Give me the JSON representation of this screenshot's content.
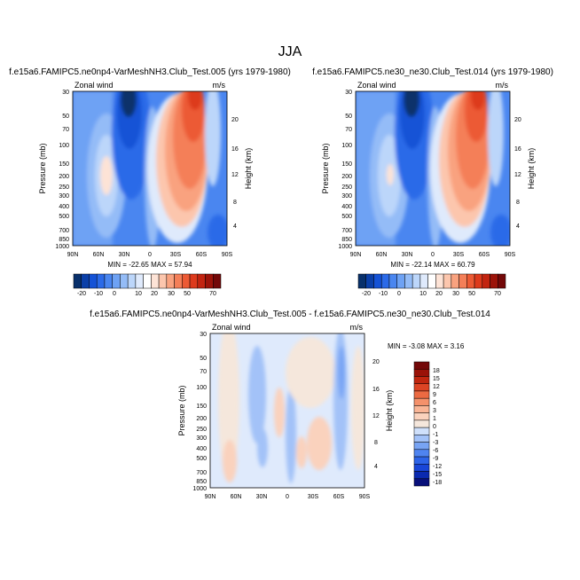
{
  "figure": {
    "title": "JJA"
  },
  "colors": {
    "cbar_top": [
      "#08306b",
      "#0a3fa8",
      "#1452d6",
      "#2b6ae8",
      "#4a86f0",
      "#6ea2f4",
      "#94bcf7",
      "#bcd6fa",
      "#dfeafc",
      "#ffffff",
      "#fde3d6",
      "#fcc6ad",
      "#f9a27f",
      "#f47f58",
      "#ec5a34",
      "#dd3a1c",
      "#c22410",
      "#9c1309",
      "#730808"
    ],
    "cbar_diff": [
      "#08107a",
      "#0a2ab0",
      "#1846d8",
      "#2d64e8",
      "#4f84f0",
      "#78a4f4",
      "#a3c2f8",
      "#cfe0fb",
      "#f5e7dc",
      "#fad2bd",
      "#f9b596",
      "#f4916b",
      "#ec6a42",
      "#dc4424",
      "#c0260f",
      "#9a1208",
      "#730808"
    ]
  },
  "chart_data": [
    {
      "type": "heatmap",
      "title": "f.e15a6.FAMIPC5.ne0np4-VarMeshNH3.Club_Test.005 (yrs 1979-1980)",
      "left_label": "Zonal wind",
      "right_label": "m/s",
      "ylabel": "Pressure (mb)",
      "ylabel_right": "Height (km)",
      "x_ticks": [
        "90N",
        "60N",
        "30N",
        "0",
        "30S",
        "60S",
        "90S"
      ],
      "y_ticks": [
        "30",
        "50",
        "70",
        "100",
        "150",
        "200",
        "250",
        "300",
        "400",
        "500",
        "700",
        "850",
        "1000"
      ],
      "y_ticks_right": [
        "20",
        "16",
        "12",
        "8",
        "4"
      ],
      "min_max": "MIN = -22.65   MAX =  57.94",
      "colorbar_labels": [
        "-20",
        "-10",
        "0",
        "10",
        "20",
        "30",
        "50",
        "70"
      ],
      "peaks": {
        "min": -22.65,
        "max": 57.94
      }
    },
    {
      "type": "heatmap",
      "title": "f.e15a6.FAMIPC5.ne30_ne30.Club_Test.014 (yrs 1979-1980)",
      "left_label": "Zonal wind",
      "right_label": "m/s",
      "ylabel": "Pressure (mb)",
      "ylabel_right": "Height (km)",
      "x_ticks": [
        "90N",
        "60N",
        "30N",
        "0",
        "30S",
        "60S",
        "90S"
      ],
      "y_ticks": [
        "30",
        "50",
        "70",
        "100",
        "150",
        "200",
        "250",
        "300",
        "400",
        "500",
        "700",
        "850",
        "1000"
      ],
      "y_ticks_right": [
        "20",
        "16",
        "12",
        "8",
        "4"
      ],
      "min_max": "MIN = -22.14   MAX =  60.79",
      "colorbar_labels": [
        "-20",
        "-10",
        "0",
        "10",
        "20",
        "30",
        "50",
        "70"
      ],
      "peaks": {
        "min": -22.14,
        "max": 60.79
      }
    },
    {
      "type": "heatmap",
      "title": "f.e15a6.FAMIPC5.ne0np4-VarMeshNH3.Club_Test.005 - f.e15a6.FAMIPC5.ne30_ne30.Club_Test.014",
      "left_label": "Zonal wind",
      "right_label": "m/s",
      "ylabel": "Pressure (mb)",
      "ylabel_right": "Height (km)",
      "x_ticks": [
        "90N",
        "60N",
        "30N",
        "0",
        "30S",
        "60S",
        "90S"
      ],
      "y_ticks": [
        "30",
        "50",
        "70",
        "100",
        "150",
        "200",
        "250",
        "300",
        "400",
        "500",
        "700",
        "850",
        "1000"
      ],
      "y_ticks_right": [
        "20",
        "16",
        "12",
        "8",
        "4"
      ],
      "min_max": "MIN = -3.08   MAX =  3.16",
      "colorbar_labels": [
        "18",
        "15",
        "12",
        "9",
        "6",
        "3",
        "1",
        "0",
        "-1",
        "-3",
        "-6",
        "-9",
        "-12",
        "-15",
        "-18"
      ],
      "peaks": {
        "min": -3.08,
        "max": 3.16
      }
    }
  ]
}
